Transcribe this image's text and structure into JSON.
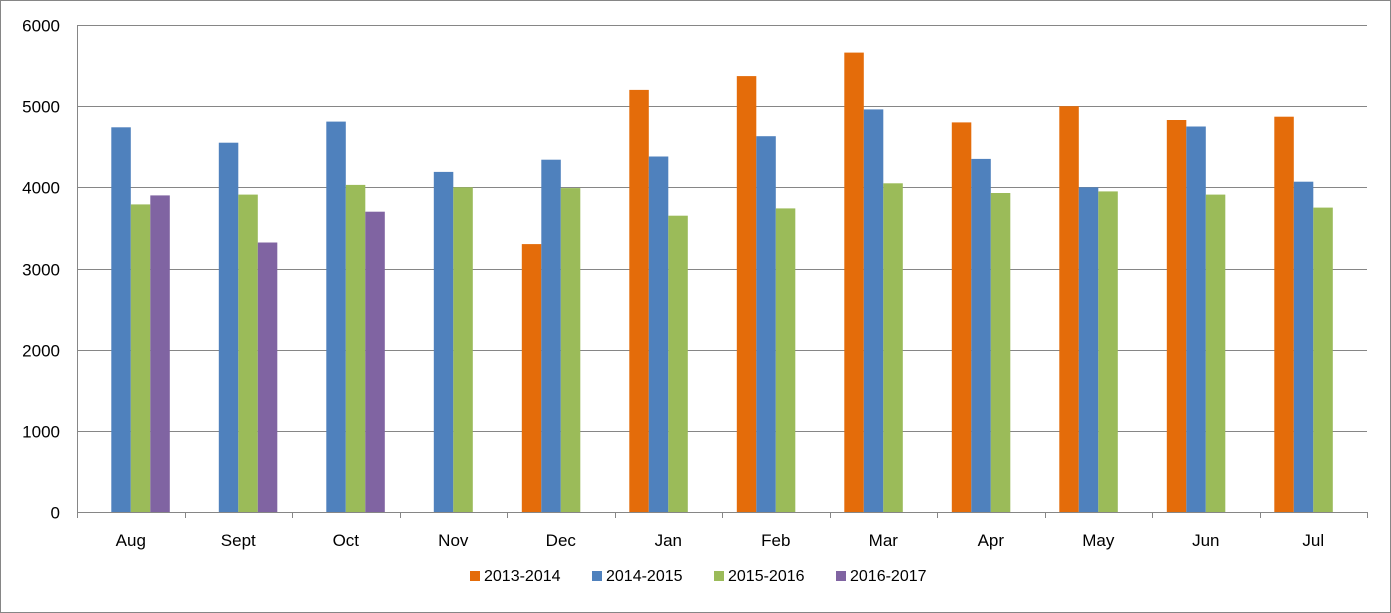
{
  "chart_data": {
    "type": "bar",
    "title": "",
    "xlabel": "",
    "ylabel": "",
    "ylim": [
      0,
      6000
    ],
    "yticks": [
      0,
      1000,
      2000,
      3000,
      4000,
      5000,
      6000
    ],
    "grid": true,
    "legend_position": "bottom",
    "categories": [
      "Aug",
      "Sept",
      "Oct",
      "Nov",
      "Dec",
      "Jan",
      "Feb",
      "Mar",
      "Apr",
      "May",
      "Jun",
      "Jul"
    ],
    "series": [
      {
        "name": "2013-2014",
        "color": "#E46C0A",
        "values": [
          null,
          null,
          null,
          null,
          3300,
          5200,
          5370,
          5660,
          4800,
          5000,
          4830,
          4870
        ]
      },
      {
        "name": "2014-2015",
        "color": "#4F81BD",
        "values": [
          4740,
          4550,
          4810,
          4190,
          4340,
          4380,
          4630,
          4960,
          4350,
          4000,
          4750,
          4070
        ]
      },
      {
        "name": "2015-2016",
        "color": "#9BBB59",
        "values": [
          3790,
          3910,
          4030,
          4000,
          3990,
          3650,
          3740,
          4050,
          3930,
          3950,
          3910,
          3750
        ]
      },
      {
        "name": "2016-2017",
        "color": "#8064A2",
        "values": [
          3900,
          3320,
          3700,
          null,
          null,
          null,
          null,
          null,
          null,
          null,
          null,
          null
        ]
      }
    ]
  }
}
